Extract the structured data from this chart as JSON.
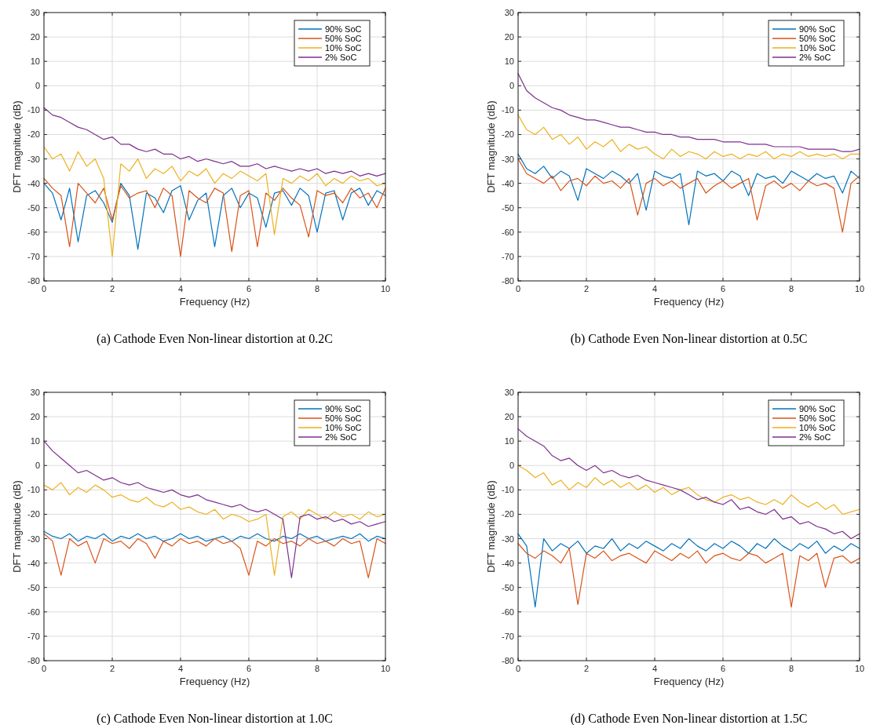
{
  "chart_data": [
    {
      "type": "line",
      "title": "(a)  Cathode Even Non-linear distortion at 0.2C",
      "xlabel": "Frequency (Hz)",
      "ylabel": "DFT magnitude (dB)",
      "xlim": [
        0,
        10
      ],
      "xticks": [
        0,
        2,
        4,
        6,
        8,
        10
      ],
      "ylim": [
        -80,
        30
      ],
      "yticks": [
        -80,
        -70,
        -60,
        -50,
        -40,
        -30,
        -20,
        -10,
        0,
        10,
        20,
        30
      ],
      "grid": true,
      "legend": "top right",
      "x": [
        0,
        0.25,
        0.5,
        0.75,
        1,
        1.25,
        1.5,
        1.75,
        2,
        2.25,
        2.5,
        2.75,
        3,
        3.25,
        3.5,
        3.75,
        4,
        4.25,
        4.5,
        4.75,
        5,
        5.25,
        5.5,
        5.75,
        6,
        6.25,
        6.5,
        6.75,
        7,
        7.25,
        7.5,
        7.75,
        8,
        8.25,
        8.5,
        8.75,
        9,
        9.25,
        9.5,
        9.75,
        10
      ],
      "series": [
        {
          "name": "90% SoC",
          "color": "#0072bd",
          "values": [
            -40,
            -44,
            -55,
            -42,
            -64,
            -45,
            -43,
            -48,
            -56,
            -40,
            -45,
            -67,
            -44,
            -46,
            -52,
            -43,
            -41,
            -55,
            -47,
            -44,
            -66,
            -45,
            -42,
            -50,
            -44,
            -46,
            -58,
            -44,
            -43,
            -49,
            -42,
            -45,
            -60,
            -44,
            -43,
            -55,
            -44,
            -42,
            -49,
            -43,
            -45
          ]
        },
        {
          "name": "50% SoC",
          "color": "#d95319",
          "values": [
            -38,
            -42,
            -45,
            -66,
            -40,
            -44,
            -48,
            -42,
            -55,
            -41,
            -46,
            -44,
            -43,
            -50,
            -42,
            -45,
            -70,
            -43,
            -46,
            -48,
            -42,
            -44,
            -68,
            -45,
            -43,
            -66,
            -44,
            -47,
            -42,
            -46,
            -49,
            -62,
            -43,
            -45,
            -44,
            -48,
            -42,
            -46,
            -44,
            -50,
            -42
          ]
        },
        {
          "name": "10% SoC",
          "color": "#edb120",
          "values": [
            -25,
            -30,
            -28,
            -35,
            -27,
            -33,
            -30,
            -38,
            -70,
            -32,
            -35,
            -30,
            -38,
            -34,
            -36,
            -33,
            -39,
            -35,
            -37,
            -34,
            -40,
            -36,
            -38,
            -35,
            -37,
            -39,
            -36,
            -61,
            -38,
            -40,
            -37,
            -39,
            -36,
            -41,
            -38,
            -40,
            -37,
            -39,
            -38,
            -41,
            -40
          ]
        },
        {
          "name": "2% SoC",
          "color": "#7e2f8e",
          "values": [
            -9,
            -12,
            -13,
            -15,
            -17,
            -18,
            -20,
            -22,
            -21,
            -24,
            -24,
            -26,
            -27,
            -26,
            -28,
            -28,
            -30,
            -29,
            -31,
            -30,
            -31,
            -32,
            -31,
            -33,
            -33,
            -32,
            -34,
            -33,
            -34,
            -35,
            -34,
            -35,
            -34,
            -36,
            -35,
            -36,
            -35,
            -37,
            -36,
            -37,
            -36
          ]
        }
      ]
    },
    {
      "type": "line",
      "title": "(b)  Cathode Even Non-linear distortion at 0.5C",
      "xlabel": "Frequency (Hz)",
      "ylabel": "DFT magnitude (dB)",
      "xlim": [
        0,
        10
      ],
      "xticks": [
        0,
        2,
        4,
        6,
        8,
        10
      ],
      "ylim": [
        -80,
        30
      ],
      "yticks": [
        -80,
        -70,
        -60,
        -50,
        -40,
        -30,
        -20,
        -10,
        0,
        10,
        20,
        30
      ],
      "grid": true,
      "legend": "top right",
      "x": [
        0,
        0.25,
        0.5,
        0.75,
        1,
        1.25,
        1.5,
        1.75,
        2,
        2.25,
        2.5,
        2.75,
        3,
        3.25,
        3.5,
        3.75,
        4,
        4.25,
        4.5,
        4.75,
        5,
        5.25,
        5.5,
        5.75,
        6,
        6.25,
        6.5,
        6.75,
        7,
        7.25,
        7.5,
        7.75,
        8,
        8.25,
        8.5,
        8.75,
        9,
        9.25,
        9.5,
        9.75,
        10
      ],
      "series": [
        {
          "name": "90% SoC",
          "color": "#0072bd",
          "values": [
            -28,
            -34,
            -36,
            -33,
            -38,
            -35,
            -37,
            -47,
            -34,
            -36,
            -38,
            -35,
            -37,
            -40,
            -36,
            -51,
            -35,
            -37,
            -38,
            -36,
            -57,
            -35,
            -37,
            -36,
            -39,
            -35,
            -37,
            -45,
            -36,
            -38,
            -37,
            -40,
            -35,
            -37,
            -39,
            -36,
            -38,
            -37,
            -44,
            -35,
            -38
          ]
        },
        {
          "name": "50% SoC",
          "color": "#d95319",
          "values": [
            -30,
            -36,
            -38,
            -40,
            -37,
            -43,
            -39,
            -38,
            -41,
            -37,
            -40,
            -39,
            -42,
            -38,
            -53,
            -40,
            -38,
            -41,
            -39,
            -42,
            -40,
            -38,
            -44,
            -41,
            -39,
            -42,
            -40,
            -38,
            -55,
            -41,
            -39,
            -42,
            -40,
            -43,
            -39,
            -41,
            -40,
            -42,
            -60,
            -40,
            -37
          ]
        },
        {
          "name": "10% SoC",
          "color": "#edb120",
          "values": [
            -12,
            -18,
            -20,
            -17,
            -22,
            -20,
            -24,
            -21,
            -26,
            -23,
            -25,
            -22,
            -27,
            -24,
            -26,
            -25,
            -28,
            -30,
            -26,
            -29,
            -27,
            -28,
            -30,
            -27,
            -29,
            -28,
            -30,
            -28,
            -29,
            -27,
            -30,
            -28,
            -29,
            -27,
            -29,
            -28,
            -29,
            -28,
            -30,
            -28,
            -28
          ]
        },
        {
          "name": "2% SoC",
          "color": "#7e2f8e",
          "values": [
            5,
            -2,
            -5,
            -7,
            -9,
            -10,
            -12,
            -13,
            -14,
            -14,
            -15,
            -16,
            -17,
            -17,
            -18,
            -19,
            -19,
            -20,
            -20,
            -21,
            -21,
            -22,
            -22,
            -22,
            -23,
            -23,
            -23,
            -24,
            -24,
            -24,
            -25,
            -25,
            -25,
            -25,
            -26,
            -26,
            -26,
            -26,
            -27,
            -27,
            -26
          ]
        }
      ]
    },
    {
      "type": "line",
      "title": "(c)  Cathode Even Non-linear distortion at 1.0C",
      "xlabel": "Frequency (Hz)",
      "ylabel": "DFT magnitude (dB)",
      "xlim": [
        0,
        10
      ],
      "xticks": [
        0,
        2,
        4,
        6,
        8,
        10
      ],
      "ylim": [
        -80,
        30
      ],
      "yticks": [
        -80,
        -70,
        -60,
        -50,
        -40,
        -30,
        -20,
        -10,
        0,
        10,
        20,
        30
      ],
      "grid": true,
      "legend": "top right",
      "x": [
        0,
        0.25,
        0.5,
        0.75,
        1,
        1.25,
        1.5,
        1.75,
        2,
        2.25,
        2.5,
        2.75,
        3,
        3.25,
        3.5,
        3.75,
        4,
        4.25,
        4.5,
        4.75,
        5,
        5.25,
        5.5,
        5.75,
        6,
        6.25,
        6.5,
        6.75,
        7,
        7.25,
        7.5,
        7.75,
        8,
        8.25,
        8.5,
        8.75,
        9,
        9.25,
        9.5,
        9.75,
        10
      ],
      "series": [
        {
          "name": "90% SoC",
          "color": "#0072bd",
          "values": [
            -27,
            -29,
            -30,
            -28,
            -31,
            -29,
            -30,
            -28,
            -31,
            -29,
            -30,
            -28,
            -30,
            -29,
            -31,
            -30,
            -28,
            -30,
            -29,
            -31,
            -30,
            -29,
            -31,
            -29,
            -30,
            -28,
            -30,
            -31,
            -29,
            -30,
            -28,
            -30,
            -29,
            -31,
            -30,
            -29,
            -30,
            -28,
            -31,
            -29,
            -30
          ]
        },
        {
          "name": "50% SoC",
          "color": "#d95319",
          "values": [
            -28,
            -31,
            -45,
            -30,
            -33,
            -31,
            -40,
            -30,
            -32,
            -31,
            -34,
            -30,
            -32,
            -38,
            -31,
            -33,
            -30,
            -32,
            -31,
            -33,
            -30,
            -32,
            -31,
            -34,
            -45,
            -31,
            -33,
            -30,
            -32,
            -31,
            -33,
            -30,
            -32,
            -31,
            -33,
            -30,
            -32,
            -31,
            -46,
            -30,
            -32
          ]
        },
        {
          "name": "10% SoC",
          "color": "#edb120",
          "values": [
            -8,
            -10,
            -7,
            -12,
            -9,
            -11,
            -8,
            -10,
            -13,
            -12,
            -14,
            -15,
            -13,
            -16,
            -17,
            -15,
            -18,
            -17,
            -19,
            -20,
            -18,
            -22,
            -20,
            -21,
            -23,
            -22,
            -20,
            -45,
            -21,
            -19,
            -22,
            -18,
            -20,
            -22,
            -19,
            -21,
            -20,
            -22,
            -19,
            -21,
            -20
          ]
        },
        {
          "name": "2% SoC",
          "color": "#7e2f8e",
          "values": [
            10,
            6,
            3,
            0,
            -3,
            -2,
            -4,
            -6,
            -5,
            -7,
            -8,
            -7,
            -9,
            -10,
            -11,
            -10,
            -12,
            -13,
            -12,
            -14,
            -15,
            -16,
            -17,
            -16,
            -18,
            -19,
            -18,
            -20,
            -22,
            -46,
            -21,
            -20,
            -22,
            -21,
            -23,
            -22,
            -24,
            -23,
            -25,
            -24,
            -23
          ]
        }
      ]
    },
    {
      "type": "line",
      "title": "(d)  Cathode Even Non-linear distortion at 1.5C",
      "xlabel": "Frequency (Hz)",
      "ylabel": "DFT magnitude (dB)",
      "xlim": [
        0,
        10
      ],
      "xticks": [
        0,
        2,
        4,
        6,
        8,
        10
      ],
      "ylim": [
        -80,
        30
      ],
      "yticks": [
        -80,
        -70,
        -60,
        -50,
        -40,
        -30,
        -20,
        -10,
        0,
        10,
        20,
        30
      ],
      "grid": true,
      "legend": "top right",
      "x": [
        0,
        0.25,
        0.5,
        0.75,
        1,
        1.25,
        1.5,
        1.75,
        2,
        2.25,
        2.5,
        2.75,
        3,
        3.25,
        3.5,
        3.75,
        4,
        4.25,
        4.5,
        4.75,
        5,
        5.25,
        5.5,
        5.75,
        6,
        6.25,
        6.5,
        6.75,
        7,
        7.25,
        7.5,
        7.75,
        8,
        8.25,
        8.5,
        8.75,
        9,
        9.25,
        9.5,
        9.75,
        10
      ],
      "series": [
        {
          "name": "90% SoC",
          "color": "#0072bd",
          "values": [
            -28,
            -33,
            -58,
            -30,
            -35,
            -32,
            -34,
            -31,
            -36,
            -33,
            -34,
            -30,
            -35,
            -32,
            -34,
            -31,
            -33,
            -35,
            -32,
            -34,
            -30,
            -33,
            -35,
            -32,
            -34,
            -31,
            -33,
            -36,
            -32,
            -34,
            -30,
            -33,
            -35,
            -32,
            -34,
            -31,
            -36,
            -33,
            -35,
            -32,
            -34
          ]
        },
        {
          "name": "50% SoC",
          "color": "#d95319",
          "values": [
            -32,
            -36,
            -38,
            -35,
            -37,
            -40,
            -34,
            -57,
            -36,
            -38,
            -35,
            -39,
            -37,
            -36,
            -38,
            -40,
            -35,
            -37,
            -39,
            -36,
            -38,
            -35,
            -40,
            -37,
            -36,
            -38,
            -39,
            -36,
            -37,
            -40,
            -38,
            -36,
            -58,
            -37,
            -39,
            -36,
            -50,
            -38,
            -37,
            -40,
            -38
          ]
        },
        {
          "name": "10% SoC",
          "color": "#edb120",
          "values": [
            0,
            -2,
            -5,
            -3,
            -8,
            -6,
            -10,
            -7,
            -9,
            -5,
            -8,
            -6,
            -9,
            -7,
            -10,
            -8,
            -11,
            -9,
            -12,
            -10,
            -9,
            -12,
            -14,
            -15,
            -13,
            -12,
            -14,
            -13,
            -15,
            -16,
            -14,
            -16,
            -12,
            -15,
            -17,
            -15,
            -18,
            -16,
            -20,
            -19,
            -18
          ]
        },
        {
          "name": "2% SoC",
          "color": "#7e2f8e",
          "values": [
            15,
            12,
            10,
            8,
            4,
            2,
            3,
            0,
            -2,
            0,
            -3,
            -2,
            -4,
            -5,
            -4,
            -6,
            -7,
            -8,
            -9,
            -10,
            -12,
            -14,
            -13,
            -15,
            -16,
            -14,
            -18,
            -17,
            -19,
            -20,
            -18,
            -22,
            -21,
            -24,
            -23,
            -25,
            -26,
            -28,
            -27,
            -30,
            -28
          ]
        }
      ]
    }
  ]
}
